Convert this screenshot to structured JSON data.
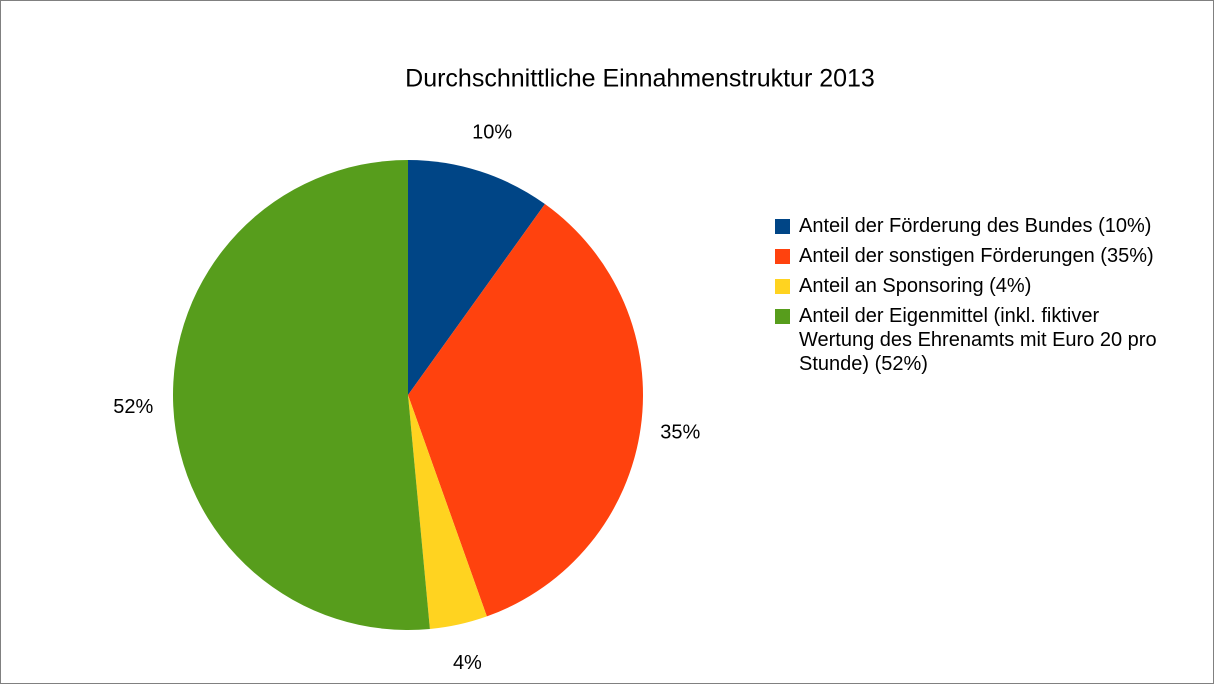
{
  "chart_data": {
    "type": "pie",
    "title": "Durchschnittliche Einnahmenstruktur 2013",
    "categories": [
      "Anteil der Förderung des Bundes (10%)",
      "Anteil der sonstigen Förderungen (35%)",
      "Anteil an Sponsoring (4%)",
      "Anteil der Eigenmittel (inkl. fiktiver Wertung des Ehrenamts mit Euro 20 pro Stunde) (52%)"
    ],
    "values": [
      10,
      35,
      4,
      52
    ],
    "value_labels": [
      "10%",
      "35%",
      "4%",
      "52%"
    ],
    "colors": [
      "#004586",
      "#ff420e",
      "#ffd320",
      "#579d1c"
    ],
    "legend": "right"
  }
}
